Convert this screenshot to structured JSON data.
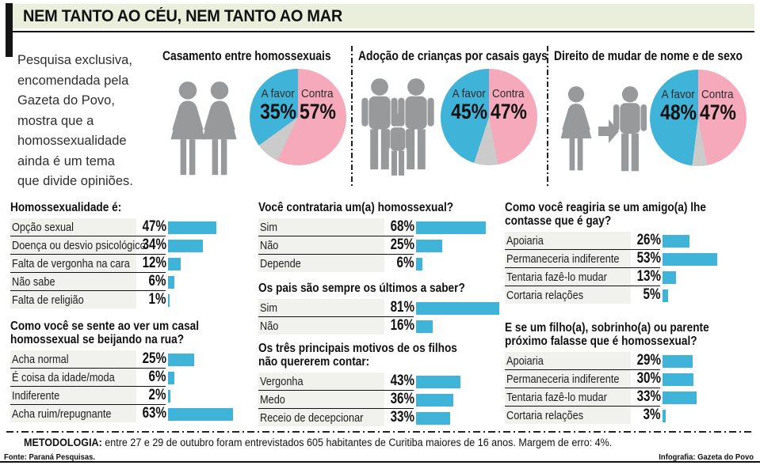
{
  "header": {
    "title": "NEM TANTO AO CÉU, NEM TANTO AO MAR"
  },
  "intro": "Pesquisa exclusiva,\nencomendada pela\nGazeta do Povo,\nmostra que a\nhomossexualidade\nainda é um tema\nque divide opiniões.",
  "colors": {
    "favor_blue": "#3fb4d8",
    "contra_pink": "#f5a9ba",
    "neutral_gray": "#cbcbcb",
    "bar_blue": "#3fb4d8",
    "figure_gray": "#98999b",
    "title_bg_green": "#e9efda",
    "row_bg_gray": "#f1f1ed"
  },
  "pies": [
    {
      "heading": "Casamento entre homossexuais",
      "icon": "two-women-icon",
      "favor_label": "A favor",
      "favor_pct": "35%",
      "contra_label": "Contra",
      "contra_pct": "57%",
      "slices": {
        "contra": 57,
        "neutral": 8,
        "favor": 35
      }
    },
    {
      "heading": "Adoção de crianças por casais gays",
      "icon": "two-men-with-child-icon",
      "favor_label": "A favor",
      "favor_pct": "45%",
      "contra_label": "Contra",
      "contra_pct": "47%",
      "slices": {
        "contra": 47,
        "neutral": 8,
        "favor": 45
      }
    },
    {
      "heading": "Direito de mudar de nome e de sexo",
      "icon": "woman-arrow-man-icon",
      "favor_label": "A favor",
      "favor_pct": "48%",
      "contra_label": "Contra",
      "contra_pct": "47%",
      "slices": {
        "contra": 47,
        "neutral": 5,
        "favor": 48
      }
    }
  ],
  "bar_sections": [
    {
      "question": "Homossexualidade é:",
      "rows": [
        {
          "label": "Opção sexual",
          "pct": 47
        },
        {
          "label": "Doença ou desvio psicológico",
          "pct": 34
        },
        {
          "label": "Falta de vergonha na cara",
          "pct": 12
        },
        {
          "label": "Não sabe",
          "pct": 6
        },
        {
          "label": "Falta de religião",
          "pct": 1
        }
      ]
    },
    {
      "question": "Como você se sente ao ver um casal\nhomossexual se beijando na rua?",
      "rows": [
        {
          "label": "Acha normal",
          "pct": 25
        },
        {
          "label": "É coisa da idade/moda",
          "pct": 6
        },
        {
          "label": "Indiferente",
          "pct": 2
        },
        {
          "label": "Acha ruim/repugnante",
          "pct": 63
        }
      ]
    },
    {
      "question": "Você contrataria um(a) homossexual?",
      "rows": [
        {
          "label": "Sim",
          "pct": 68
        },
        {
          "label": "Não",
          "pct": 25
        },
        {
          "label": "Depende",
          "pct": 6
        }
      ]
    },
    {
      "question": "Os pais são sempre os últimos a saber?",
      "rows": [
        {
          "label": "Sim",
          "pct": 81
        },
        {
          "label": "Não",
          "pct": 16
        }
      ]
    },
    {
      "question": "Os três principais motivos de os filhos\nnão quererem contar:",
      "rows": [
        {
          "label": "Vergonha",
          "pct": 43
        },
        {
          "label": "Medo",
          "pct": 36
        },
        {
          "label": "Receio de decepcionar",
          "pct": 33
        }
      ]
    },
    {
      "question": "Como você reagiria se um amigo(a) lhe\ncontasse que é gay?",
      "rows": [
        {
          "label": "Apoiaria",
          "pct": 26
        },
        {
          "label": "Permaneceria indiferente",
          "pct": 53
        },
        {
          "label": "Tentaria fazê-lo mudar",
          "pct": 13
        },
        {
          "label": "Cortaria relações",
          "pct": 5
        }
      ]
    },
    {
      "question": "E se um filho(a), sobrinho(a) ou parente\npróximo falasse que é homossexual?",
      "rows": [
        {
          "label": "Apoiaria",
          "pct": 29
        },
        {
          "label": "Permaneceria indiferente",
          "pct": 30
        },
        {
          "label": "Tentaria fazê-lo mudar",
          "pct": 33
        },
        {
          "label": "Cortaria relações",
          "pct": 3
        }
      ]
    }
  ],
  "footer": {
    "methodology_label": "METODOLOGIA:",
    "methodology_text": " entre 27 e 29 de outubro foram entrevistados 605 habitantes de Curitiba maiores de 16 anos. Margem de erro: 4%.",
    "source": "Fonte: Paraná Pesquisas.",
    "credit": "Infografia: Gazeta do Povo"
  },
  "chart_data": [
    {
      "type": "pie",
      "title": "Casamento entre homossexuais",
      "labels": [
        "Contra",
        "",
        "A favor"
      ],
      "values": [
        57,
        8,
        35
      ],
      "unit": "%",
      "colors": [
        "#f5a9ba",
        "#cbcbcb",
        "#3fb4d8"
      ],
      "start": "top",
      "direction": "clockwise"
    },
    {
      "type": "pie",
      "title": "Adoção de crianças por casais gays",
      "labels": [
        "Contra",
        "",
        "A favor"
      ],
      "values": [
        47,
        8,
        45
      ],
      "unit": "%",
      "colors": [
        "#f5a9ba",
        "#cbcbcb",
        "#3fb4d8"
      ],
      "start": "top",
      "direction": "clockwise"
    },
    {
      "type": "pie",
      "title": "Direito de mudar de nome e de sexo",
      "labels": [
        "Contra",
        "",
        "A favor"
      ],
      "values": [
        47,
        5,
        48
      ],
      "unit": "%",
      "colors": [
        "#f5a9ba",
        "#cbcbcb",
        "#3fb4d8"
      ],
      "start": "top",
      "direction": "clockwise"
    },
    {
      "type": "bar",
      "title": "Homossexualidade é:",
      "categories": [
        "Opção sexual",
        "Doença ou desvio psicológico",
        "Falta de vergonha na cara",
        "Não sabe",
        "Falta de religião"
      ],
      "values": [
        47,
        34,
        12,
        6,
        1
      ],
      "unit": "%",
      "orientation": "horizontal"
    },
    {
      "type": "bar",
      "title": "Como você se sente ao ver um casal homossexual se beijando na rua?",
      "categories": [
        "Acha normal",
        "É coisa da idade/moda",
        "Indiferente",
        "Acha ruim/repugnante"
      ],
      "values": [
        25,
        6,
        2,
        63
      ],
      "unit": "%",
      "orientation": "horizontal"
    },
    {
      "type": "bar",
      "title": "Você contrataria um(a) homossexual?",
      "categories": [
        "Sim",
        "Não",
        "Depende"
      ],
      "values": [
        68,
        25,
        6
      ],
      "unit": "%",
      "orientation": "horizontal"
    },
    {
      "type": "bar",
      "title": "Os pais são sempre os últimos a saber?",
      "categories": [
        "Sim",
        "Não"
      ],
      "values": [
        81,
        16
      ],
      "unit": "%",
      "orientation": "horizontal"
    },
    {
      "type": "bar",
      "title": "Os três principais motivos de os filhos não quererem contar:",
      "categories": [
        "Vergonha",
        "Medo",
        "Receio de decepcionar"
      ],
      "values": [
        43,
        36,
        33
      ],
      "unit": "%",
      "orientation": "horizontal"
    },
    {
      "type": "bar",
      "title": "Como você reagiria se um amigo(a) lhe contasse que é gay?",
      "categories": [
        "Apoiaria",
        "Permaneceria indiferente",
        "Tentaria fazê-lo mudar",
        "Cortaria relações"
      ],
      "values": [
        26,
        53,
        13,
        5
      ],
      "unit": "%",
      "orientation": "horizontal"
    },
    {
      "type": "bar",
      "title": "E se um filho(a), sobrinho(a) ou parente próximo falasse que é homossexual?",
      "categories": [
        "Apoiaria",
        "Permaneceria indiferente",
        "Tentaria fazê-lo mudar",
        "Cortaria relações"
      ],
      "values": [
        29,
        30,
        33,
        3
      ],
      "unit": "%",
      "orientation": "horizontal"
    }
  ]
}
